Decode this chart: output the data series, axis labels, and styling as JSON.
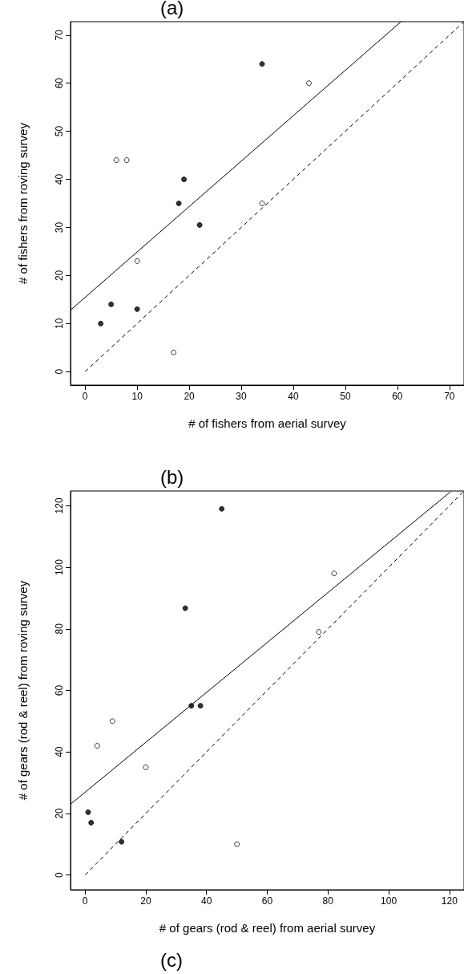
{
  "chart_data": [
    {
      "type": "scatter",
      "xlabel": "# of fishers from aerial survey",
      "ylabel": "# of fishers from roving survey",
      "annotations": [
        "(a)"
      ],
      "xlim": [
        -2.8,
        72.8
      ],
      "ylim": [
        -2.8,
        72.8
      ],
      "xticks": [
        0,
        10,
        20,
        30,
        40,
        50,
        60,
        70
      ],
      "yticks": [
        0,
        10,
        20,
        30,
        40,
        50,
        60,
        70
      ],
      "marker": "circle",
      "series": [
        {
          "color": "#000000",
          "x": [
            3,
            5,
            10,
            18,
            19,
            22,
            34
          ],
          "values": [
            10,
            14,
            13,
            35,
            40,
            30.5,
            64
          ]
        },
        {
          "color": "#ffffff",
          "x": [
            6,
            8,
            10,
            17,
            34,
            43
          ],
          "values": [
            44,
            44,
            23,
            4,
            35,
            60
          ]
        },
        {
          "type": "line",
          "color": "#000000",
          "marker": "none",
          "line_style": "solid",
          "x": [
            -2.8,
            60.7
          ],
          "values": [
            12.8,
            72.8
          ]
        },
        {
          "type": "line",
          "color": "#000000",
          "marker": "none",
          "line_style": "dashed",
          "x": [
            0,
            72.8
          ],
          "values": [
            0,
            72.8
          ]
        }
      ]
    },
    {
      "type": "scatter",
      "xlabel": "# of gears (rod & reel) from aerial survey",
      "ylabel": "# of gears (rod & reel) from roving survey",
      "annotations": [
        "(b)",
        "(c)"
      ],
      "xlim": [
        -4.8,
        124.8
      ],
      "ylim": [
        -4.8,
        124.8
      ],
      "xticks": [
        0,
        20,
        40,
        60,
        80,
        100,
        120
      ],
      "yticks": [
        0,
        20,
        40,
        60,
        80,
        100,
        120
      ],
      "marker": "circle",
      "series": [
        {
          "color": "#000000",
          "x": [
            1,
            2,
            12,
            33,
            35,
            38,
            45
          ],
          "values": [
            20.4,
            17,
            10.8,
            86.7,
            55,
            55,
            119
          ]
        },
        {
          "color": "#ffffff",
          "x": [
            4,
            9,
            20,
            50,
            77,
            82
          ],
          "values": [
            42,
            50,
            35,
            10,
            79,
            98
          ]
        },
        {
          "type": "line",
          "color": "#000000",
          "marker": "none",
          "line_style": "solid",
          "x": [
            -4.8,
            120.3
          ],
          "values": [
            23,
            124.5
          ]
        },
        {
          "type": "line",
          "color": "#000000",
          "marker": "none",
          "line_style": "dashed",
          "x": [
            0,
            124.8
          ],
          "values": [
            0,
            124.8
          ]
        }
      ]
    }
  ]
}
